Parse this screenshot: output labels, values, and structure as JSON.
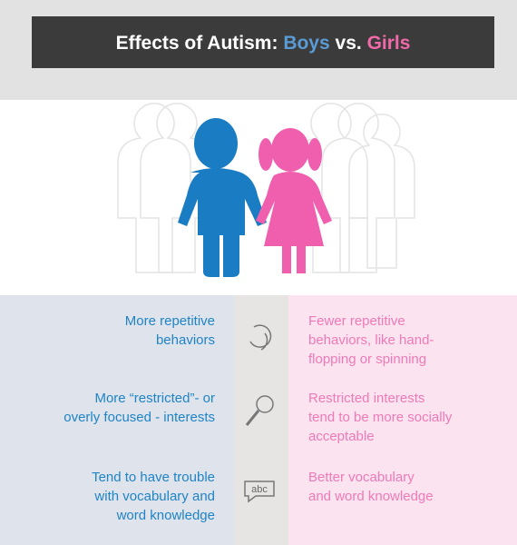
{
  "header": {
    "title": {
      "part1": "Effects of Autism:",
      "boys": "Boys",
      "vs": "vs.",
      "girls": "Girls"
    }
  },
  "rows": [
    {
      "boys": [
        "More repetitive",
        "behaviors"
      ],
      "girls": [
        "Fewer repetitive",
        "behaviors, like hand-",
        "flopping or spinning"
      ]
    },
    {
      "boys": [
        "More “restricted”- or",
        "overly focused - interests"
      ],
      "girls": [
        "Restricted interests",
        "tend to be more socially",
        "acceptable"
      ]
    },
    {
      "boys": [
        "Tend to have trouble",
        "with vocabulary and",
        "word knowledge"
      ],
      "girls": [
        "Better vocabulary",
        "and word knowledge"
      ],
      "icon_text": "abc"
    }
  ]
}
